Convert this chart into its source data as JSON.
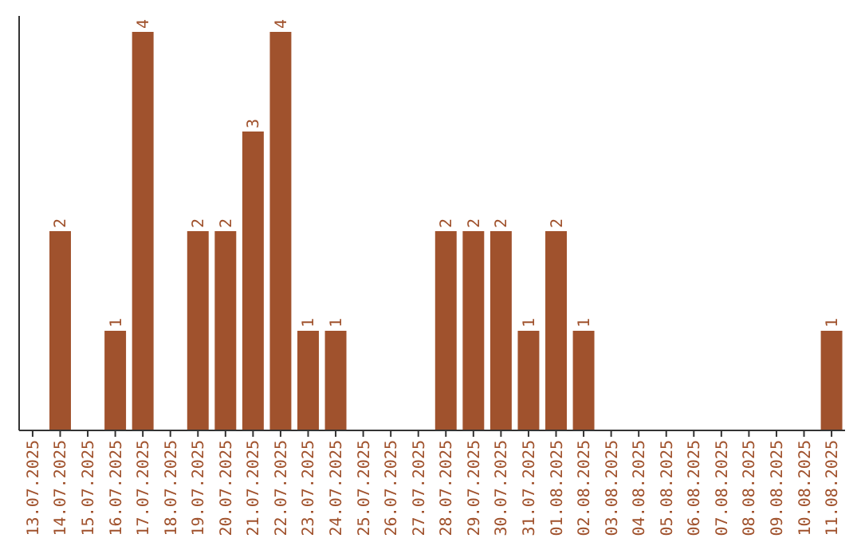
{
  "chart_data": {
    "type": "bar",
    "categories": [
      "13.07.2025",
      "14.07.2025",
      "15.07.2025",
      "16.07.2025",
      "17.07.2025",
      "18.07.2025",
      "19.07.2025",
      "20.07.2025",
      "21.07.2025",
      "22.07.2025",
      "23.07.2025",
      "24.07.2025",
      "25.07.2025",
      "26.07.2025",
      "27.07.2025",
      "28.07.2025",
      "29.07.2025",
      "30.07.2025",
      "31.07.2025",
      "01.08.2025",
      "02.08.2025",
      "03.08.2025",
      "04.08.2025",
      "05.08.2025",
      "06.08.2025",
      "07.08.2025",
      "08.08.2025",
      "09.08.2025",
      "10.08.2025",
      "11.08.2025"
    ],
    "values": [
      0,
      2,
      0,
      1,
      4,
      0,
      2,
      2,
      3,
      4,
      1,
      1,
      0,
      0,
      0,
      2,
      2,
      2,
      1,
      2,
      1,
      0,
      0,
      0,
      0,
      0,
      0,
      0,
      0,
      1
    ],
    "value_labels": [
      null,
      "2",
      null,
      "1",
      "4",
      null,
      "2",
      "2",
      "3",
      "4",
      "1",
      "1",
      null,
      null,
      null,
      "2",
      "2",
      "2",
      "1",
      "2",
      "1",
      null,
      null,
      null,
      null,
      null,
      null,
      null,
      null,
      "1"
    ],
    "color": "#a0522d",
    "tick_labels": "x"
  }
}
